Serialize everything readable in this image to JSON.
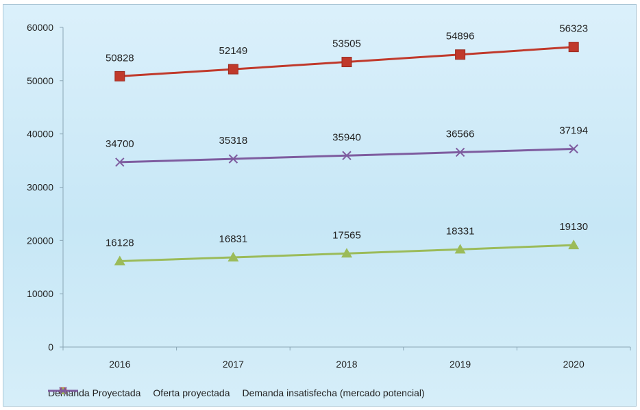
{
  "chart_data": {
    "type": "line",
    "categories": [
      "2016",
      "2017",
      "2018",
      "2019",
      "2020"
    ],
    "ylim": [
      0,
      60000
    ],
    "yticks": [
      0,
      10000,
      20000,
      30000,
      40000,
      50000,
      60000
    ],
    "grid": false,
    "legend_position": "bottom",
    "series": [
      {
        "name": "Demanda Proyectada",
        "values": [
          50828,
          52149,
          53505,
          54896,
          56323
        ],
        "color": "#c0392b",
        "marker": "square"
      },
      {
        "name": "Oferta proyectada",
        "values": [
          16128,
          16831,
          17565,
          18331,
          19130
        ],
        "color": "#9bbb59",
        "marker": "triangle"
      },
      {
        "name": "Demanda insatisfecha (mercado potencial)",
        "values": [
          34700,
          35318,
          35940,
          36566,
          37194
        ],
        "color": "#7e5c9f",
        "marker": "x"
      }
    ]
  }
}
